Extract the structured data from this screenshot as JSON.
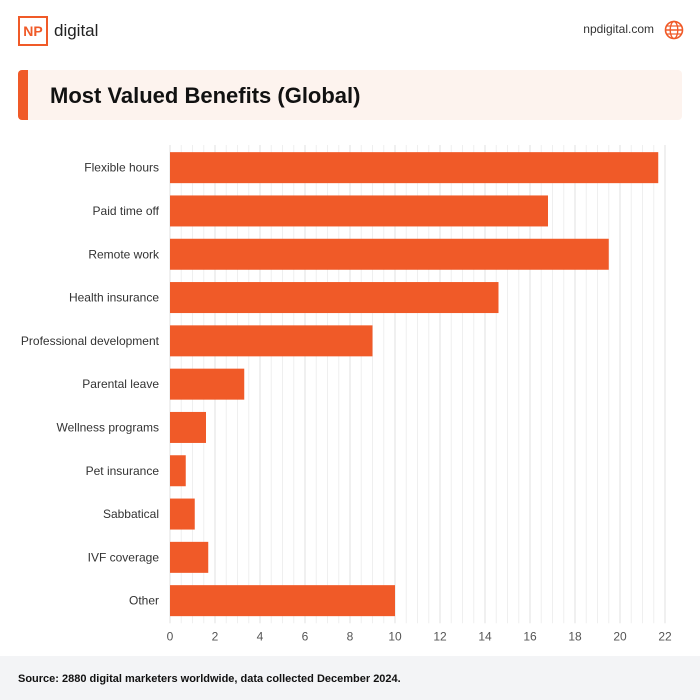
{
  "header": {
    "logo_mark": "NP",
    "logo_word": "digital",
    "site": "npdigital.com"
  },
  "title": "Most Valued Benefits (Global)",
  "source": "Source: 2880 digital marketers worldwide, data collected December 2024.",
  "colors": {
    "accent": "#f05a28",
    "bar": "#f05a28",
    "title_bg": "#fdf3ee",
    "footer_bg": "#f3f4f6"
  },
  "icons": {
    "globe": "globe-icon"
  },
  "chart_data": {
    "type": "bar",
    "orientation": "horizontal",
    "categories": [
      "Flexible hours",
      "Paid time off",
      "Remote work",
      "Health insurance",
      "Professional development",
      "Parental leave",
      "Wellness programs",
      "Pet insurance",
      "Sabbatical",
      "IVF coverage",
      "Other"
    ],
    "values": [
      21.7,
      16.8,
      19.5,
      14.6,
      9.0,
      3.3,
      1.6,
      0.7,
      1.1,
      1.7,
      10.0
    ],
    "xlim": [
      0,
      22
    ],
    "xticks": [
      "0",
      "2",
      "4",
      "6",
      "8",
      "10",
      "12",
      "14",
      "16",
      "18",
      "20",
      "22"
    ],
    "grid": true,
    "xlabel": "",
    "ylabel": ""
  }
}
